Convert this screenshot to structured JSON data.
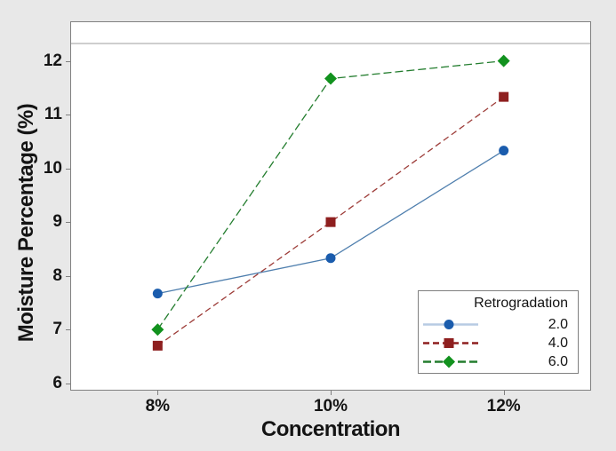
{
  "window": {
    "background_color": "#e8e8e8",
    "plot_background_color": "#ffffff",
    "plot_border_color": "#808080",
    "separator_line_color": "#9e9e9e",
    "tick_color": "#7f7f7f",
    "text_color": "#141414"
  },
  "chart_data": {
    "type": "line",
    "title": "",
    "xlabel": "Concentration",
    "ylabel": "Moisture Percentage (%)",
    "categories": [
      "8%",
      "10%",
      "12%"
    ],
    "y_ticks": [
      6,
      7,
      8,
      9,
      10,
      11,
      12
    ],
    "ylim": [
      5.88,
      12.72
    ],
    "grid": false,
    "legend": {
      "title": "Retrogradation",
      "position": "bottom-right"
    },
    "series": [
      {
        "name": "2.0",
        "marker": "circle",
        "marker_color": "#1a5cad",
        "line_color": "#4f7fae",
        "legend_line_color": "#b7cbe3",
        "line_dash": "none",
        "values": [
          7.67,
          8.33,
          10.33
        ]
      },
      {
        "name": "4.0",
        "marker": "square",
        "marker_color": "#8e1f1f",
        "line_color": "#9d3c38",
        "legend_line_color": "#8e1f1f",
        "line_dash": "7 4",
        "values": [
          6.7,
          9.0,
          11.33
        ]
      },
      {
        "name": "6.0",
        "marker": "diamond",
        "marker_color": "#12921e",
        "line_color": "#237d2e",
        "legend_line_color": "#237d2e",
        "line_dash": "9 4",
        "values": [
          7.0,
          11.67,
          12.0
        ]
      }
    ]
  }
}
